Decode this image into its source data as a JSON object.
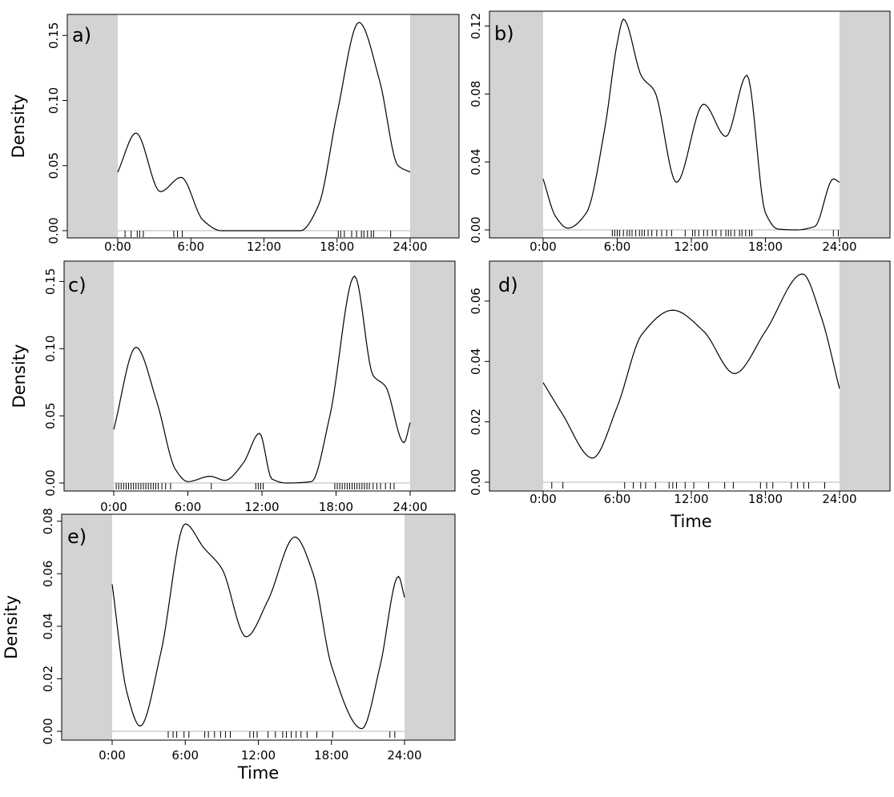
{
  "chart_data": [
    {
      "panel": "a)",
      "type": "line",
      "ylabel": "Density",
      "xlabel": "",
      "x_ticks": [
        "0:00",
        "6:00",
        "12:00",
        "18:00",
        "24:00"
      ],
      "y_ticks": [
        "0.00",
        "0.05",
        "0.10",
        "0.15"
      ],
      "y_tick_values": [
        0,
        0.05,
        0.1,
        0.15
      ],
      "ylim": [
        0,
        0.16
      ],
      "x": [
        0,
        1.5,
        3.5,
        5.2,
        7,
        8.5,
        12,
        15,
        16.5,
        18,
        19.8,
        21.5,
        23,
        24
      ],
      "density": [
        0.045,
        0.075,
        0.03,
        0.041,
        0.008,
        0,
        0,
        0,
        0.02,
        0.09,
        0.16,
        0.115,
        0.05,
        0.045
      ],
      "rug": [
        0.6,
        1.1,
        1.6,
        1.8,
        2.1,
        4.6,
        4.9,
        5.3,
        18.1,
        18.3,
        18.6,
        19.2,
        19.6,
        20,
        20.2,
        20.5,
        20.8,
        21,
        22.4
      ]
    },
    {
      "panel": "b)",
      "type": "line",
      "ylabel": "",
      "xlabel": "",
      "x_ticks": [
        "0:00",
        "6:00",
        "12:00",
        "18:00",
        "24:00"
      ],
      "y_ticks": [
        "0.00",
        "0.04",
        "0.08",
        "0.12"
      ],
      "y_tick_values": [
        0,
        0.04,
        0.08,
        0.12
      ],
      "ylim": [
        0,
        0.124
      ],
      "x": [
        0,
        1,
        2,
        3.5,
        5,
        6,
        6.5,
        8,
        9,
        10.8,
        13,
        14.8,
        16.5,
        18,
        19,
        20.5,
        22,
        23.5,
        24
      ],
      "density": [
        0.03,
        0.008,
        0.001,
        0.01,
        0.06,
        0.11,
        0.124,
        0.09,
        0.082,
        0.028,
        0.074,
        0.055,
        0.091,
        0.01,
        0.0005,
        0,
        0.002,
        0.03,
        0.028
      ],
      "rug": [
        5.6,
        5.8,
        6,
        6.2,
        6.5,
        6.8,
        7,
        7.2,
        7.5,
        7.8,
        8,
        8.2,
        8.5,
        8.8,
        9.2,
        9.6,
        10,
        10.4,
        11.5,
        12.1,
        12.3,
        12.6,
        13,
        13.3,
        13.7,
        14,
        14.4,
        14.8,
        15,
        15.2,
        15.5,
        15.9,
        16.1,
        16.4,
        16.7,
        16.9,
        23.5,
        23.9
      ]
    },
    {
      "panel": "c)",
      "type": "line",
      "ylabel": "Density",
      "xlabel": "",
      "x_ticks": [
        "0:00",
        "6:00",
        "12:00",
        "18:00",
        "24:00"
      ],
      "y_ticks": [
        "0.00",
        "0.05",
        "0.10",
        "0.15"
      ],
      "y_tick_values": [
        0,
        0.05,
        0.1,
        0.15
      ],
      "ylim": [
        0,
        0.155
      ],
      "x": [
        0,
        1.8,
        3.5,
        5,
        6,
        7.8,
        9,
        10.5,
        11.8,
        12.8,
        14,
        16,
        17.5,
        19.5,
        21,
        22,
        23.5,
        24
      ],
      "density": [
        0.04,
        0.101,
        0.06,
        0.01,
        0.001,
        0.005,
        0.002,
        0.015,
        0.037,
        0.003,
        0,
        0.001,
        0.05,
        0.154,
        0.08,
        0.072,
        0.03,
        0.045
      ],
      "rug": [
        0.2,
        0.4,
        0.6,
        0.8,
        1,
        1.2,
        1.4,
        1.6,
        1.8,
        2,
        2.2,
        2.4,
        2.6,
        2.8,
        3,
        3.2,
        3.4,
        3.6,
        3.9,
        4.2,
        4.6,
        7.9,
        11.5,
        11.7,
        11.9,
        12.1,
        17.9,
        18.1,
        18.3,
        18.5,
        18.7,
        18.9,
        19.1,
        19.3,
        19.5,
        19.7,
        19.9,
        20.1,
        20.3,
        20.5,
        20.7,
        21,
        21.3,
        21.6,
        22,
        22.4,
        22.7
      ]
    },
    {
      "panel": "d)",
      "type": "line",
      "ylabel": "",
      "xlabel": "Time",
      "x_ticks": [
        "0:00",
        "6:00",
        "12:00",
        "18:00",
        "24:00"
      ],
      "y_ticks": [
        "0.00",
        "0.02",
        "0.04",
        "0.06"
      ],
      "y_tick_values": [
        0,
        0.02,
        0.04,
        0.06
      ],
      "ylim": [
        0,
        0.069
      ],
      "x": [
        0,
        1.5,
        4,
        6,
        8,
        10.5,
        13,
        15.5,
        18,
        21,
        22.5,
        24
      ],
      "density": [
        0.033,
        0.023,
        0.008,
        0.025,
        0.049,
        0.057,
        0.05,
        0.036,
        0.05,
        0.069,
        0.055,
        0.031
      ],
      "rug": [
        0.7,
        1.6,
        6.6,
        7.3,
        7.9,
        8.3,
        9.1,
        10.2,
        10.5,
        10.8,
        11.5,
        12.2,
        13.4,
        14.7,
        15.4,
        17.6,
        18.1,
        18.6,
        20.1,
        20.6,
        21.1,
        21.5,
        22.8
      ]
    },
    {
      "panel": "e)",
      "type": "line",
      "ylabel": "Density",
      "xlabel": "Time",
      "x_ticks": [
        "0:00",
        "6:00",
        "12:00",
        "18:00",
        "24:00"
      ],
      "y_ticks": [
        "0.00",
        "0.02",
        "0.04",
        "0.06",
        "0.08"
      ],
      "y_tick_values": [
        0,
        0.02,
        0.04,
        0.06,
        0.08
      ],
      "ylim": [
        0,
        0.079
      ],
      "x": [
        0,
        1.2,
        2.3,
        4,
        6,
        7.5,
        9,
        11,
        12.8,
        15,
        16.5,
        18,
        20.5,
        22,
        23.5,
        24
      ],
      "density": [
        0.056,
        0.015,
        0.002,
        0.03,
        0.079,
        0.07,
        0.062,
        0.036,
        0.05,
        0.074,
        0.06,
        0.025,
        0.001,
        0.025,
        0.059,
        0.051
      ],
      "rug": [
        4.6,
        5,
        5.3,
        5.9,
        6.3,
        7.6,
        7.9,
        8.4,
        8.9,
        9.3,
        9.7,
        11.3,
        11.6,
        11.9,
        12.8,
        13.4,
        14,
        14.3,
        14.7,
        15.1,
        15.5,
        16,
        16.8,
        18.1,
        22.8,
        23.2
      ]
    }
  ]
}
